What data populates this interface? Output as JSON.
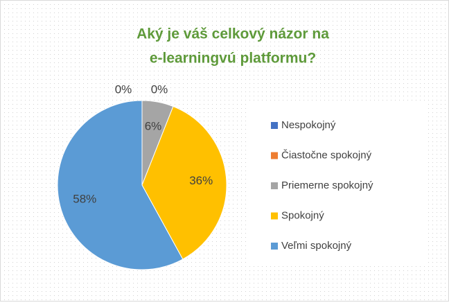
{
  "chart_data": {
    "type": "pie",
    "title": [
      "Aký je váš celkový názor na",
      "e-learningvú platformu?"
    ],
    "categories": [
      "Nespokojný",
      "Čiastočne spokojný",
      "Priemerne spokojný",
      "Spokojný",
      "Veľmi spokojný"
    ],
    "values": [
      0,
      0,
      6,
      36,
      58
    ],
    "value_labels": [
      "0%",
      "0%",
      "6%",
      "36%",
      "58%"
    ],
    "colors": [
      "#4472c4",
      "#ed7d31",
      "#a5a5a5",
      "#ffc000",
      "#5b9bd5"
    ],
    "legend": "right"
  }
}
